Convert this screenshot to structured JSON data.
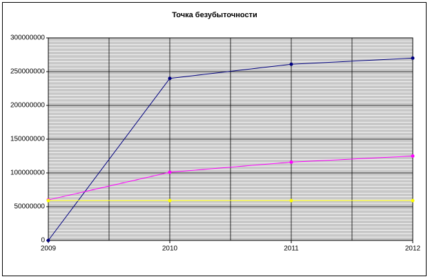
{
  "chart_data": {
    "type": "line",
    "title": "Точка безубыточности",
    "categories": [
      "2009",
      "2010",
      "2011",
      "2012"
    ],
    "series": [
      {
        "color": "#000080",
        "values": [
          0,
          240000000,
          261000000,
          270000000
        ]
      },
      {
        "color": "#ff00ff",
        "values": [
          60000000,
          101000000,
          116000000,
          125000000
        ]
      },
      {
        "color": "#ffff00",
        "values": [
          59000000,
          59000000,
          59000000,
          59000000
        ]
      }
    ],
    "ylim": [
      0,
      300000000
    ],
    "yticks": [
      0,
      50000000,
      100000000,
      150000000,
      200000000,
      250000000,
      300000000
    ],
    "minor_grid_step": 5000000,
    "grid": true
  }
}
